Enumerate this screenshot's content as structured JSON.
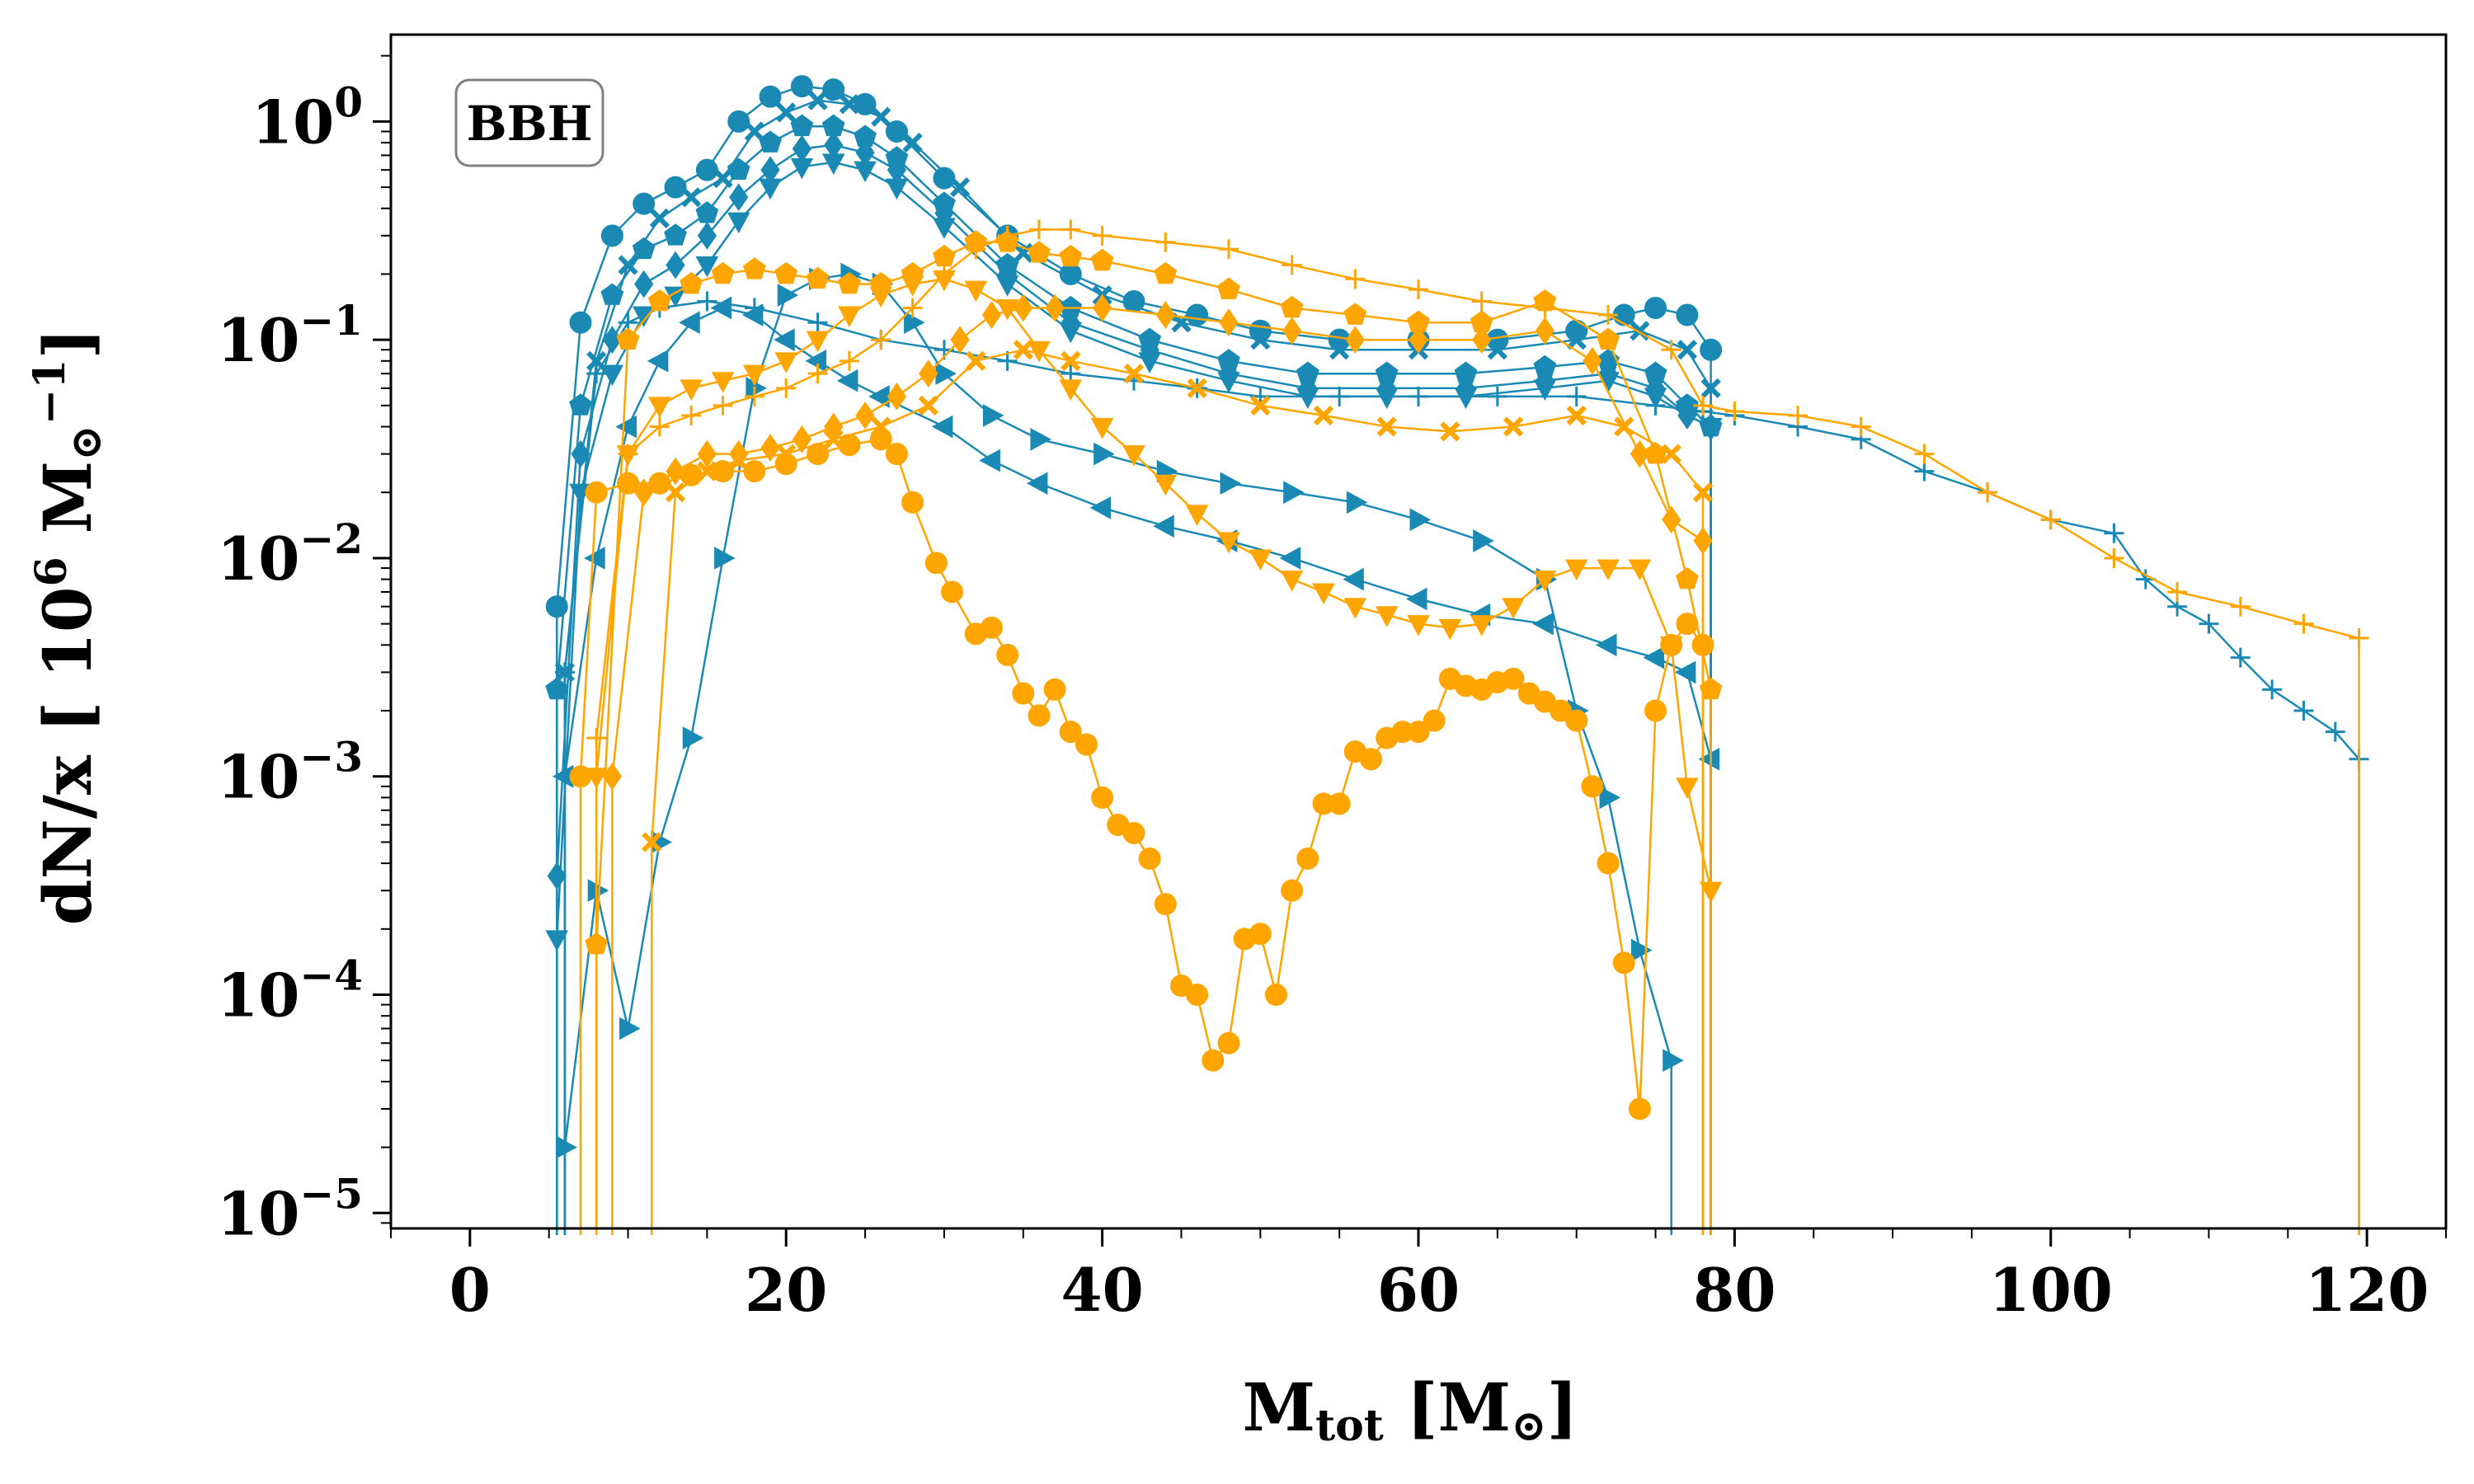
{
  "chart_data": {
    "type": "line",
    "xlabel_main": "M",
    "xlabel_sub": "tot",
    "xlabel_bracket_main": "[M",
    "xlabel_bracket_sub": "⊙",
    "xlabel_bracket_close": "]",
    "ylabel_main": "dN/x [ 10",
    "ylabel_exp": "6",
    "ylabel_unit": " M",
    "ylabel_unit_sub": "⊙",
    "ylabel_unit_exp": "−1",
    "ylabel_close": "]",
    "x_ticks": [
      "0",
      "20",
      "40",
      "60",
      "80",
      "100",
      "120"
    ],
    "y_tick_base": "10",
    "y_tick_exps": [
      "0",
      "−1",
      "−2",
      "−3",
      "−4",
      "−5"
    ],
    "xlim": [
      -5,
      125
    ],
    "ylim": [
      8.5e-06,
      2.5
    ],
    "yscale": "log",
    "grid": false,
    "annotation": "BBH",
    "annotation_position": "top-left",
    "colors": {
      "blue": "#1a8ab5",
      "orange": "#ffa500"
    },
    "series": [
      {
        "color": "blue",
        "marker": "circle",
        "x": [
          5.5,
          7,
          9,
          11,
          13,
          15,
          17,
          19,
          21,
          23,
          25,
          27,
          30,
          34,
          38,
          42,
          46,
          50,
          55,
          60,
          65,
          70,
          73,
          75,
          77,
          78.5
        ],
        "y": [
          0.006,
          0.12,
          0.3,
          0.42,
          0.5,
          0.6,
          1.0,
          1.3,
          1.45,
          1.4,
          1.2,
          0.9,
          0.55,
          0.3,
          0.2,
          0.15,
          0.13,
          0.11,
          0.1,
          0.1,
          0.1,
          0.11,
          0.13,
          0.14,
          0.13,
          0.09
        ]
      },
      {
        "color": "blue",
        "marker": "x",
        "x": [
          6,
          8,
          10,
          12,
          14,
          16,
          18,
          20,
          22,
          24,
          26,
          28,
          31,
          35,
          40,
          45,
          50,
          55,
          60,
          65,
          70,
          74,
          77,
          78.5
        ],
        "y": [
          0.003,
          0.08,
          0.22,
          0.36,
          0.45,
          0.55,
          0.9,
          1.1,
          1.25,
          1.2,
          1.05,
          0.8,
          0.5,
          0.25,
          0.16,
          0.12,
          0.1,
          0.09,
          0.09,
          0.09,
          0.1,
          0.11,
          0.09,
          0.06
        ]
      },
      {
        "color": "blue",
        "marker": "pentagon",
        "x": [
          5.5,
          7,
          9,
          11,
          13,
          15,
          17,
          19,
          21,
          23,
          25,
          27,
          30,
          34,
          38,
          43,
          48,
          53,
          58,
          63,
          68,
          72,
          75,
          77,
          78.5
        ],
        "y": [
          0.0025,
          0.05,
          0.16,
          0.26,
          0.3,
          0.38,
          0.6,
          0.8,
          0.95,
          0.95,
          0.85,
          0.68,
          0.42,
          0.22,
          0.14,
          0.1,
          0.08,
          0.07,
          0.07,
          0.07,
          0.075,
          0.08,
          0.07,
          0.05,
          0.04
        ]
      },
      {
        "color": "blue",
        "marker": "diamond",
        "x": [
          5.5,
          7,
          9,
          11,
          13,
          15,
          17,
          19,
          21,
          23,
          25,
          27,
          30,
          34,
          38,
          43,
          48,
          53,
          58,
          63,
          68,
          72,
          75,
          77,
          78.5
        ],
        "y": [
          0.00035,
          0.03,
          0.1,
          0.18,
          0.22,
          0.3,
          0.45,
          0.6,
          0.75,
          0.78,
          0.72,
          0.6,
          0.38,
          0.2,
          0.12,
          0.09,
          0.07,
          0.06,
          0.06,
          0.06,
          0.065,
          0.07,
          0.06,
          0.045,
          0.04
        ]
      },
      {
        "color": "blue",
        "marker": "triangle-down",
        "x": [
          5.5,
          7,
          9,
          11,
          13,
          15,
          17,
          19,
          21,
          23,
          25,
          27,
          30,
          34,
          38,
          43,
          48,
          53,
          58,
          63,
          68,
          72,
          75,
          77,
          78.5
        ],
        "y": [
          0.00018,
          0.02,
          0.07,
          0.13,
          0.16,
          0.22,
          0.35,
          0.5,
          0.62,
          0.65,
          0.6,
          0.5,
          0.33,
          0.18,
          0.11,
          0.08,
          0.065,
          0.055,
          0.055,
          0.055,
          0.06,
          0.065,
          0.055,
          0.045,
          0.04
        ]
      },
      {
        "color": "blue",
        "marker": "plus",
        "x": [
          6,
          8,
          10,
          12,
          15,
          18,
          22,
          26,
          30,
          34,
          38,
          42,
          46,
          50,
          55,
          60,
          65,
          70,
          75,
          78,
          80,
          84,
          88,
          92,
          96,
          100,
          104,
          106,
          108,
          110,
          112,
          114,
          116,
          118,
          119.5
        ],
        "y": [
          0.003,
          0.07,
          0.12,
          0.14,
          0.15,
          0.14,
          0.12,
          0.1,
          0.09,
          0.08,
          0.07,
          0.065,
          0.06,
          0.055,
          0.055,
          0.055,
          0.055,
          0.055,
          0.05,
          0.047,
          0.045,
          0.04,
          0.035,
          0.025,
          0.02,
          0.015,
          0.013,
          0.008,
          0.006,
          0.005,
          0.0035,
          0.0025,
          0.002,
          0.0016,
          0.0012
        ]
      },
      {
        "color": "blue",
        "marker": "triangle-right",
        "x": [
          6,
          8,
          10,
          12,
          14,
          16,
          18,
          20,
          22,
          24,
          26,
          28,
          30,
          33,
          36,
          40,
          44,
          48,
          52,
          56,
          60,
          64,
          68,
          70,
          72,
          74,
          76
        ],
        "y": [
          2e-05,
          0.0003,
          7e-05,
          0.0005,
          0.0015,
          0.01,
          0.06,
          0.16,
          0.19,
          0.2,
          0.18,
          0.12,
          0.07,
          0.045,
          0.035,
          0.03,
          0.025,
          0.022,
          0.02,
          0.018,
          0.015,
          0.012,
          0.008,
          0.002,
          0.0008,
          0.00016,
          5e-05
        ]
      },
      {
        "color": "blue",
        "marker": "triangle-left",
        "x": [
          6,
          8,
          10,
          12,
          14,
          16,
          18,
          20,
          22,
          24,
          26,
          30,
          33,
          36,
          40,
          44,
          48,
          52,
          56,
          60,
          64,
          68,
          72,
          75,
          77,
          78.5
        ],
        "y": [
          0.001,
          0.01,
          0.04,
          0.08,
          0.12,
          0.14,
          0.13,
          0.1,
          0.08,
          0.065,
          0.055,
          0.04,
          0.028,
          0.022,
          0.017,
          0.014,
          0.012,
          0.01,
          0.008,
          0.0065,
          0.0055,
          0.005,
          0.004,
          0.0035,
          0.003,
          0.0012
        ]
      },
      {
        "color": "orange",
        "marker": "circle",
        "x": [
          7,
          8,
          10,
          12,
          14,
          16,
          18,
          20,
          22,
          24,
          26,
          27,
          28,
          29.5,
          30.5,
          32,
          33,
          34,
          35,
          36,
          37,
          38,
          39,
          40,
          41,
          42,
          43,
          44,
          45,
          46,
          47,
          48,
          49,
          50,
          51,
          52,
          53,
          54,
          55,
          56,
          57,
          58,
          59,
          60,
          61,
          62,
          63,
          64,
          65,
          66,
          67,
          68,
          69,
          70,
          71,
          72,
          73,
          74,
          75,
          76,
          77,
          78
        ],
        "y": [
          0.001,
          0.02,
          0.022,
          0.022,
          0.024,
          0.025,
          0.025,
          0.027,
          0.03,
          0.033,
          0.035,
          0.03,
          0.018,
          0.0095,
          0.007,
          0.0045,
          0.0048,
          0.0036,
          0.0024,
          0.0019,
          0.0025,
          0.0016,
          0.0014,
          0.0008,
          0.0006,
          0.00055,
          0.00042,
          0.00026,
          0.00011,
          0.0001,
          5e-05,
          6e-05,
          0.00018,
          0.00019,
          0.0001,
          0.0003,
          0.00042,
          0.00075,
          0.00075,
          0.0013,
          0.0012,
          0.0015,
          0.0016,
          0.0016,
          0.0018,
          0.0028,
          0.0026,
          0.0025,
          0.0027,
          0.0028,
          0.0024,
          0.0022,
          0.002,
          0.0018,
          0.0009,
          0.0004,
          0.00014,
          3e-05,
          0.002,
          0.004,
          0.005,
          0.004
        ]
      },
      {
        "color": "orange",
        "marker": "triangle-down",
        "x": [
          8,
          10,
          12,
          14,
          16,
          18,
          20,
          22,
          24,
          26,
          28,
          30,
          32,
          34,
          36,
          38,
          40,
          42,
          44,
          46,
          48,
          50,
          52,
          54,
          56,
          58,
          60,
          62,
          64,
          66,
          68,
          70,
          72,
          74,
          76,
          77,
          78.5
        ],
        "y": [
          0.001,
          0.03,
          0.05,
          0.06,
          0.065,
          0.07,
          0.08,
          0.1,
          0.13,
          0.16,
          0.18,
          0.19,
          0.17,
          0.14,
          0.09,
          0.06,
          0.04,
          0.03,
          0.022,
          0.016,
          0.012,
          0.01,
          0.008,
          0.007,
          0.006,
          0.0055,
          0.005,
          0.0048,
          0.005,
          0.006,
          0.008,
          0.009,
          0.009,
          0.009,
          0.004,
          0.0009,
          0.0003
        ]
      },
      {
        "color": "orange",
        "marker": "plus",
        "x": [
          8,
          10,
          12,
          14,
          16,
          18,
          20,
          22,
          24,
          26,
          28,
          30,
          32,
          34,
          36,
          38,
          40,
          44,
          48,
          52,
          56,
          60,
          64,
          68,
          72,
          76,
          78,
          80,
          84,
          88,
          92,
          96,
          100,
          104,
          108,
          112,
          116,
          119.5
        ],
        "y": [
          0.0015,
          0.03,
          0.04,
          0.045,
          0.05,
          0.055,
          0.06,
          0.07,
          0.08,
          0.1,
          0.14,
          0.2,
          0.26,
          0.3,
          0.32,
          0.32,
          0.3,
          0.28,
          0.26,
          0.22,
          0.19,
          0.17,
          0.15,
          0.14,
          0.13,
          0.09,
          0.05,
          0.047,
          0.045,
          0.04,
          0.03,
          0.02,
          0.015,
          0.01,
          0.007,
          0.006,
          0.005,
          0.0043
        ]
      },
      {
        "color": "orange",
        "marker": "pentagon",
        "x": [
          8,
          10,
          12,
          14,
          16,
          18,
          20,
          22,
          24,
          26,
          28,
          30,
          32,
          34,
          36,
          38,
          40,
          44,
          48,
          52,
          56,
          60,
          64,
          68,
          72,
          75,
          77,
          78.5
        ],
        "y": [
          0.00017,
          0.1,
          0.15,
          0.18,
          0.2,
          0.21,
          0.2,
          0.19,
          0.18,
          0.18,
          0.2,
          0.24,
          0.28,
          0.28,
          0.25,
          0.24,
          0.23,
          0.2,
          0.17,
          0.14,
          0.13,
          0.12,
          0.12,
          0.15,
          0.1,
          0.03,
          0.008,
          0.0025
        ]
      },
      {
        "color": "orange",
        "marker": "diamond",
        "x": [
          9,
          11,
          13,
          15,
          17,
          19,
          21,
          23,
          25,
          27,
          29,
          31,
          33,
          35,
          37,
          40,
          44,
          48,
          52,
          56,
          60,
          64,
          68,
          71,
          74,
          76,
          78
        ],
        "y": [
          0.001,
          0.02,
          0.025,
          0.03,
          0.03,
          0.032,
          0.035,
          0.04,
          0.045,
          0.055,
          0.07,
          0.1,
          0.13,
          0.14,
          0.14,
          0.14,
          0.13,
          0.12,
          0.11,
          0.1,
          0.1,
          0.1,
          0.11,
          0.08,
          0.03,
          0.015,
          0.012
        ]
      },
      {
        "color": "orange",
        "marker": "x",
        "x": [
          11.5,
          13,
          15,
          17,
          20,
          23,
          26,
          29,
          32,
          35,
          38,
          42,
          46,
          50,
          54,
          58,
          62,
          66,
          70,
          73,
          76,
          78
        ],
        "y": [
          0.0005,
          0.02,
          0.025,
          0.028,
          0.03,
          0.035,
          0.04,
          0.05,
          0.08,
          0.09,
          0.08,
          0.07,
          0.06,
          0.05,
          0.045,
          0.04,
          0.038,
          0.04,
          0.045,
          0.04,
          0.03,
          0.02
        ]
      }
    ]
  }
}
